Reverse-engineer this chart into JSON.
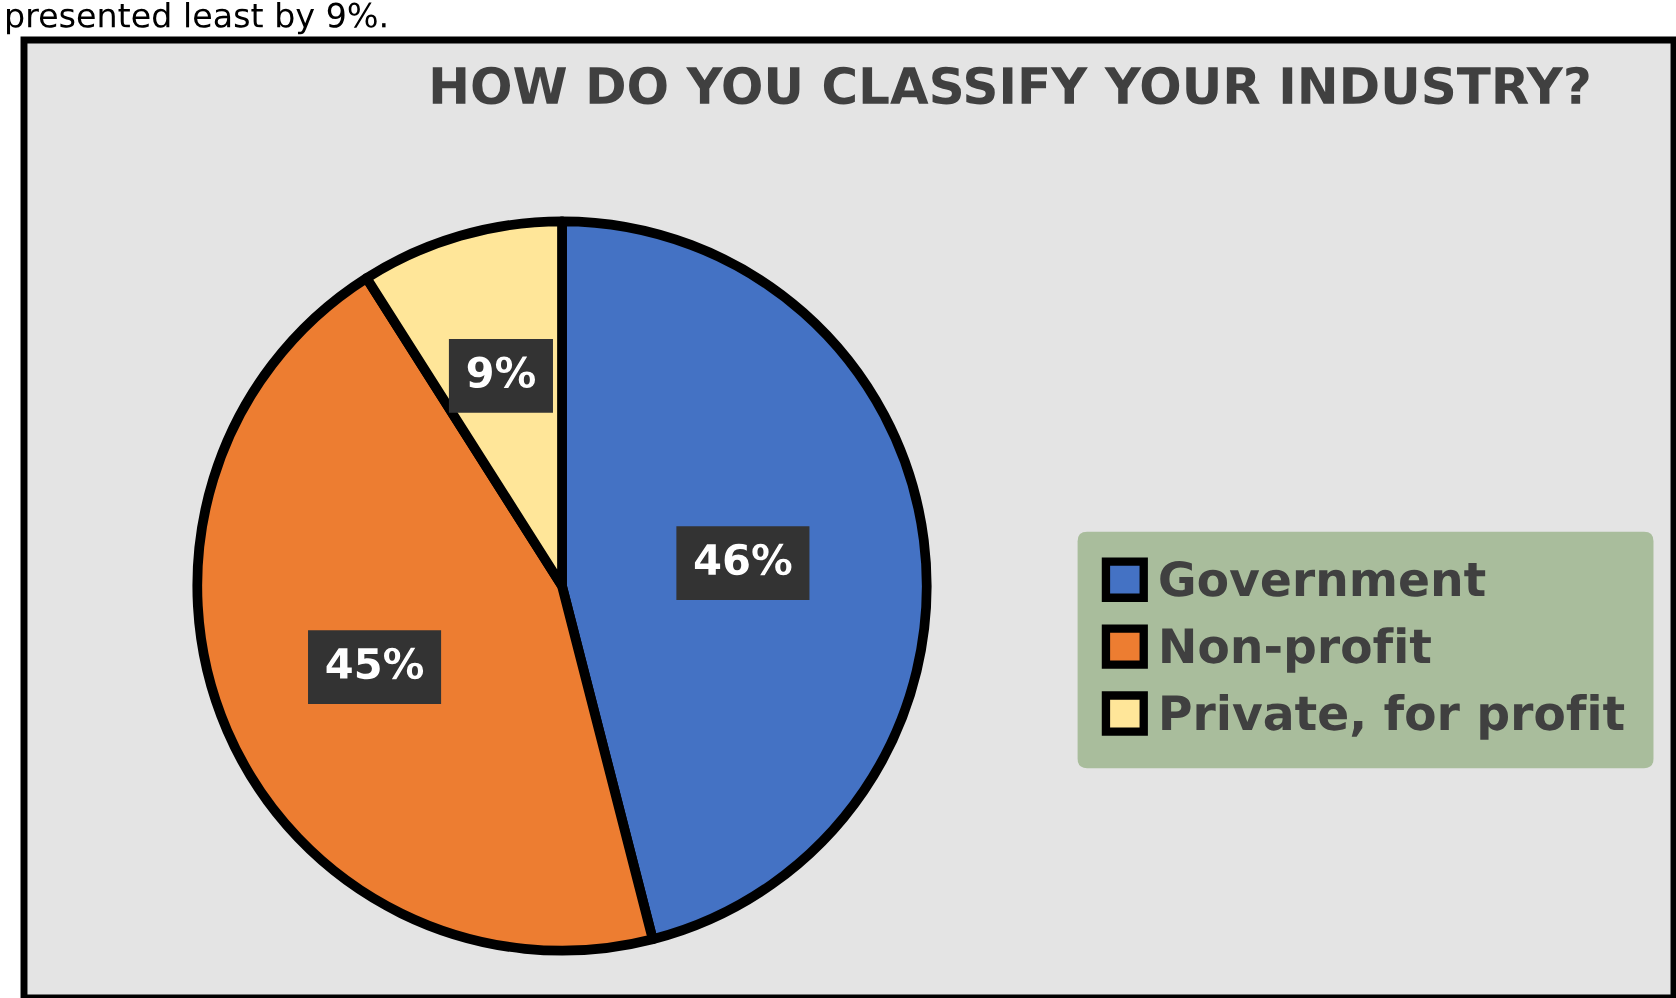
{
  "chart_data": {
    "type": "pie",
    "title": "HOW DO YOU CLASSIFY YOUR INDUSTRY?",
    "annotations": [
      "presented least by 9%."
    ],
    "categories": [
      "Government",
      "Non-profit",
      "Private, for profit"
    ],
    "values": [
      46,
      45,
      9
    ],
    "colors": [
      "#4472c4",
      "#ed7d31",
      "#ffe699"
    ],
    "value_labels": [
      "46%",
      "45%",
      "9%"
    ],
    "legend": "right"
  }
}
